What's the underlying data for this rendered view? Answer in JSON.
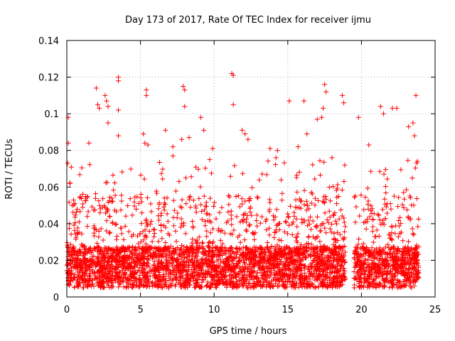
{
  "chart_data": {
    "type": "scatter",
    "title": "Day 173 of 2017, Rate Of TEC Index for receiver ijmu",
    "xlabel": "GPS time / hours",
    "ylabel": "ROTI / TECUs",
    "xlim": [
      0,
      25
    ],
    "ylim": [
      0,
      0.14
    ],
    "xticks": [
      0,
      5,
      10,
      15,
      20,
      25
    ],
    "yticks": [
      0,
      0.02,
      0.04,
      0.06,
      0.08,
      0.1,
      0.12,
      0.14
    ],
    "xtick_labels": [
      "0",
      "5",
      "10",
      "15",
      "20",
      "25"
    ],
    "ytick_labels": [
      "0",
      "0.02",
      "0.04",
      "0.06",
      "0.08",
      "0.1",
      "0.12",
      "0.14"
    ],
    "grid": true,
    "marker": "+",
    "color": "#ff0000",
    "data_gap_hours": [
      18.9,
      19.5
    ],
    "series": [
      {
        "name": "ROTI",
        "points": [
          [
            0.1,
            0.098
          ],
          [
            0.1,
            0.084
          ],
          [
            0.2,
            0.062
          ],
          [
            1.5,
            0.084
          ],
          [
            2.0,
            0.114
          ],
          [
            2.1,
            0.105
          ],
          [
            2.2,
            0.103
          ],
          [
            2.6,
            0.11
          ],
          [
            2.7,
            0.107
          ],
          [
            2.8,
            0.104
          ],
          [
            2.8,
            0.095
          ],
          [
            3.5,
            0.12
          ],
          [
            3.5,
            0.118
          ],
          [
            3.5,
            0.102
          ],
          [
            3.5,
            0.088
          ],
          [
            5.2,
            0.089
          ],
          [
            5.3,
            0.084
          ],
          [
            5.4,
            0.113
          ],
          [
            5.4,
            0.11
          ],
          [
            5.5,
            0.083
          ],
          [
            6.7,
            0.091
          ],
          [
            7.2,
            0.082
          ],
          [
            7.2,
            0.077
          ],
          [
            7.8,
            0.086
          ],
          [
            7.9,
            0.115
          ],
          [
            8.0,
            0.113
          ],
          [
            8.0,
            0.104
          ],
          [
            8.3,
            0.087
          ],
          [
            9.1,
            0.098
          ],
          [
            9.3,
            0.091
          ],
          [
            9.7,
            0.075
          ],
          [
            9.9,
            0.081
          ],
          [
            11.2,
            0.122
          ],
          [
            11.3,
            0.121
          ],
          [
            11.3,
            0.105
          ],
          [
            11.9,
            0.091
          ],
          [
            12.1,
            0.089
          ],
          [
            12.3,
            0.086
          ],
          [
            13.8,
            0.081
          ],
          [
            14.2,
            0.076
          ],
          [
            14.3,
            0.08
          ],
          [
            15.1,
            0.107
          ],
          [
            15.7,
            0.082
          ],
          [
            16.1,
            0.107
          ],
          [
            16.3,
            0.089
          ],
          [
            17.0,
            0.097
          ],
          [
            17.3,
            0.098
          ],
          [
            17.4,
            0.103
          ],
          [
            17.5,
            0.116
          ],
          [
            17.6,
            0.112
          ],
          [
            18.0,
            0.076
          ],
          [
            18.7,
            0.11
          ],
          [
            18.8,
            0.106
          ],
          [
            19.8,
            0.098
          ],
          [
            20.5,
            0.083
          ],
          [
            21.3,
            0.104
          ],
          [
            21.5,
            0.1
          ],
          [
            22.1,
            0.103
          ],
          [
            22.4,
            0.103
          ],
          [
            23.2,
            0.093
          ],
          [
            23.5,
            0.095
          ],
          [
            23.6,
            0.088
          ],
          [
            23.7,
            0.11
          ],
          [
            23.8,
            0.074
          ]
        ],
        "approx_distribution": [
          {
            "x_range": [
              0,
              18.9
            ],
            "typical_min": 0.005,
            "typical_max": 0.035,
            "median": 0.015
          },
          {
            "x_range": [
              19.5,
              23.9
            ],
            "typical_min": 0.005,
            "typical_max": 0.035,
            "median": 0.016
          }
        ]
      }
    ]
  }
}
